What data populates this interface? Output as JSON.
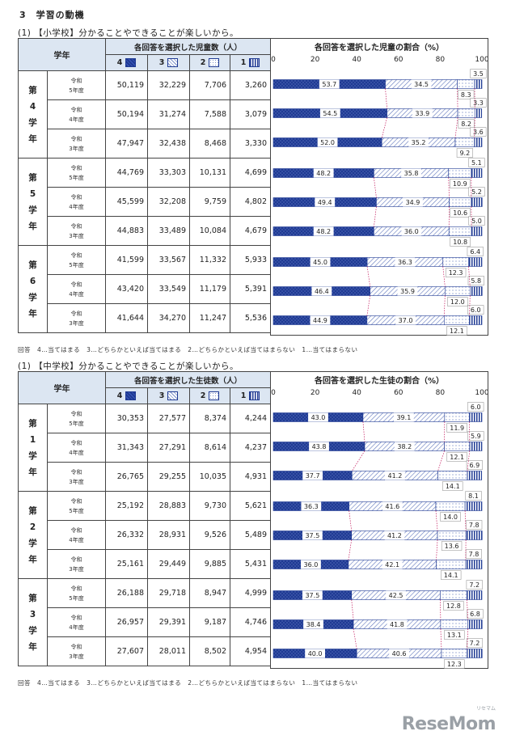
{
  "section": {
    "title": "3　学習の動機"
  },
  "tables": [
    {
      "subtitle": "(1) 【小学校】分かることやできることが楽しいから。",
      "grade_header": "学年",
      "count_header": "各回答を選択した児童数（人）",
      "chart_header": "各回答を選択した児童の割合（%）",
      "legend_nums": [
        "4",
        "3",
        "2",
        "1"
      ],
      "ticks": [
        "0",
        "20",
        "40",
        "60",
        "80",
        "100"
      ],
      "footnote": "回答　4…当てはまる　3…どちらかといえば当てはまる　2…どちらかといえば当てはまらない　1…当てはまらない",
      "groups": [
        {
          "grade": [
            "第",
            "4",
            "学",
            "年"
          ],
          "rows": [
            {
              "era": "令和",
              "year": "5年度",
              "counts": [
                "50,119",
                "32,229",
                "7,706",
                "3,260"
              ],
              "pct": [
                53.7,
                34.5,
                8.3,
                3.5
              ]
            },
            {
              "era": "令和",
              "year": "4年度",
              "counts": [
                "50,194",
                "31,274",
                "7,588",
                "3,079"
              ],
              "pct": [
                54.5,
                33.9,
                8.2,
                3.3
              ]
            },
            {
              "era": "令和",
              "year": "3年度",
              "counts": [
                "47,947",
                "32,438",
                "8,468",
                "3,330"
              ],
              "pct": [
                52.0,
                35.2,
                9.2,
                3.6
              ]
            }
          ]
        },
        {
          "grade": [
            "第",
            "5",
            "学",
            "年"
          ],
          "rows": [
            {
              "era": "令和",
              "year": "5年度",
              "counts": [
                "44,769",
                "33,303",
                "10,131",
                "4,699"
              ],
              "pct": [
                48.2,
                35.8,
                10.9,
                5.1
              ]
            },
            {
              "era": "令和",
              "year": "4年度",
              "counts": [
                "45,599",
                "32,208",
                "9,759",
                "4,802"
              ],
              "pct": [
                49.4,
                34.9,
                10.6,
                5.2
              ]
            },
            {
              "era": "令和",
              "year": "3年度",
              "counts": [
                "44,883",
                "33,489",
                "10,084",
                "4,679"
              ],
              "pct": [
                48.2,
                36.0,
                10.8,
                5.0
              ]
            }
          ]
        },
        {
          "grade": [
            "第",
            "6",
            "学",
            "年"
          ],
          "rows": [
            {
              "era": "令和",
              "year": "5年度",
              "counts": [
                "41,599",
                "33,567",
                "11,332",
                "5,933"
              ],
              "pct": [
                45.0,
                36.3,
                12.3,
                6.4
              ]
            },
            {
              "era": "令和",
              "year": "4年度",
              "counts": [
                "43,420",
                "33,549",
                "11,179",
                "5,391"
              ],
              "pct": [
                46.4,
                35.9,
                12.0,
                5.8
              ]
            },
            {
              "era": "令和",
              "year": "3年度",
              "counts": [
                "41,644",
                "34,270",
                "11,247",
                "5,536"
              ],
              "pct": [
                44.9,
                37.0,
                12.1,
                6.0
              ]
            }
          ]
        }
      ]
    },
    {
      "subtitle": "(1) 【中学校】分かることやできることが楽しいから。",
      "grade_header": "学年",
      "count_header": "各回答を選択した生徒数（人）",
      "chart_header": "各回答を選択した生徒の割合（%）",
      "legend_nums": [
        "4",
        "3",
        "2",
        "1"
      ],
      "ticks": [
        "0",
        "20",
        "40",
        "60",
        "80",
        "100"
      ],
      "footnote": "回答　4…当てはまる　3…どちらかといえば当てはまる　2…どちらかといえば当てはまらない　1…当てはまらない",
      "groups": [
        {
          "grade": [
            "第",
            "1",
            "学",
            "年"
          ],
          "rows": [
            {
              "era": "令和",
              "year": "5年度",
              "counts": [
                "30,353",
                "27,577",
                "8,374",
                "4,244"
              ],
              "pct": [
                43.0,
                39.1,
                11.9,
                6.0
              ]
            },
            {
              "era": "令和",
              "year": "4年度",
              "counts": [
                "31,343",
                "27,291",
                "8,614",
                "4,237"
              ],
              "pct": [
                43.8,
                38.2,
                12.1,
                5.9
              ]
            },
            {
              "era": "令和",
              "year": "3年度",
              "counts": [
                "26,765",
                "29,255",
                "10,035",
                "4,931"
              ],
              "pct": [
                37.7,
                41.2,
                14.1,
                6.9
              ]
            }
          ]
        },
        {
          "grade": [
            "第",
            "2",
            "学",
            "年"
          ],
          "rows": [
            {
              "era": "令和",
              "year": "5年度",
              "counts": [
                "25,192",
                "28,883",
                "9,730",
                "5,621"
              ],
              "pct": [
                36.3,
                41.6,
                14.0,
                8.1
              ]
            },
            {
              "era": "令和",
              "year": "4年度",
              "counts": [
                "26,332",
                "28,931",
                "9,526",
                "5,489"
              ],
              "pct": [
                37.5,
                41.2,
                13.6,
                7.8
              ]
            },
            {
              "era": "令和",
              "year": "3年度",
              "counts": [
                "25,161",
                "29,449",
                "9,885",
                "5,431"
              ],
              "pct": [
                36.0,
                42.1,
                14.1,
                7.8
              ]
            }
          ]
        },
        {
          "grade": [
            "第",
            "3",
            "学",
            "年"
          ],
          "rows": [
            {
              "era": "令和",
              "year": "5年度",
              "counts": [
                "26,188",
                "29,718",
                "8,947",
                "4,999"
              ],
              "pct": [
                37.5,
                42.5,
                12.8,
                7.2
              ]
            },
            {
              "era": "令和",
              "year": "4年度",
              "counts": [
                "26,957",
                "29,391",
                "9,187",
                "4,746"
              ],
              "pct": [
                38.4,
                41.8,
                13.1,
                6.8
              ]
            },
            {
              "era": "令和",
              "year": "3年度",
              "counts": [
                "27,607",
                "28,011",
                "8,502",
                "4,954"
              ],
              "pct": [
                40.0,
                40.6,
                12.3,
                7.2
              ]
            }
          ]
        }
      ]
    }
  ],
  "colors": {
    "answer4": "#1f3a93",
    "answer3": "#7a8fc8",
    "answer2": "#7a8fc8",
    "answer1": "#1f3a93",
    "header_bg": "#dce6f2",
    "connector": "#c2185b"
  },
  "logo": {
    "text": "ReseMom",
    "sub": "リセマム"
  }
}
